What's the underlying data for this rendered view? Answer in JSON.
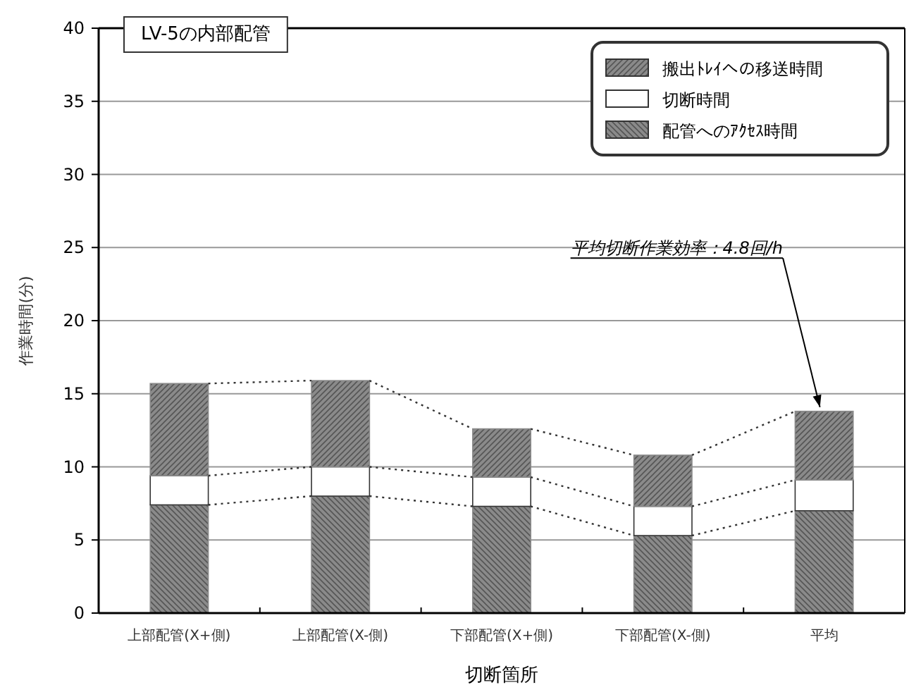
{
  "chart_data": {
    "type": "bar",
    "stacked": true,
    "title": "LV-5の内部配管",
    "xlabel": "切断箇所",
    "ylabel": "作業時間(分)",
    "categories": [
      "上部配管(X+側)",
      "上部配管(X-側)",
      "下部配管(X+側)",
      "下部配管(X-側)",
      "平均"
    ],
    "series": [
      {
        "name": "配管へのｱｸｾｽ時間",
        "color": "#8a8a8a",
        "values": [
          7.4,
          8.0,
          7.3,
          5.3,
          7.0
        ]
      },
      {
        "name": "切断時間",
        "color": "#ffffff",
        "values": [
          2.0,
          2.0,
          2.0,
          2.0,
          2.1
        ]
      },
      {
        "name": "搬出ﾄﾚｲへの移送時間",
        "color": "#8a8a8a",
        "values": [
          6.3,
          5.9,
          3.3,
          3.5,
          4.7
        ]
      }
    ],
    "ylim": [
      0,
      40
    ],
    "yticks": [
      0,
      5,
      10,
      15,
      20,
      25,
      30,
      35,
      40
    ],
    "grid": "y",
    "legend": "top right",
    "annotations": [
      {
        "text": "平均切断作業効率：4.8回/h",
        "x": "平均",
        "y": 13.8
      }
    ]
  }
}
